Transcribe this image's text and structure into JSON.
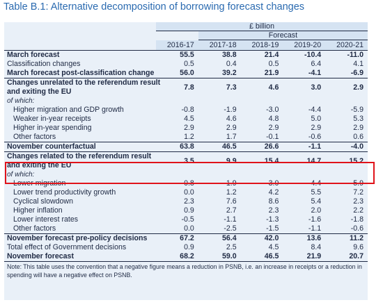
{
  "title": "Table B.1: Alternative decomposition of borrowing forecast changes",
  "header": {
    "unit": "£ billion",
    "forecast": "Forecast",
    "years": [
      "2016-17",
      "2017-18",
      "2018-19",
      "2019-20",
      "2020-21"
    ]
  },
  "rows": [
    {
      "label": "March forecast",
      "values": [
        "55.5",
        "38.8",
        "21.4",
        "-10.4",
        "-11.0"
      ]
    },
    {
      "label": "Classification changes",
      "values": [
        "0.5",
        "0.4",
        "0.5",
        "6.4",
        "4.1"
      ]
    },
    {
      "label": "March forecast post-classification change",
      "values": [
        "56.0",
        "39.2",
        "21.9",
        "-4.1",
        "-6.9"
      ]
    },
    {
      "label_line1": "Changes unrelated to the referendum result",
      "label_line2": "and exiting the EU",
      "values": [
        "7.8",
        "7.3",
        "4.6",
        "3.0",
        "2.9"
      ]
    },
    {
      "label": "of which:"
    },
    {
      "label": "Higher migration and GDP growth",
      "values": [
        "-0.8",
        "-1.9",
        "-3.0",
        "-4.4",
        "-5.9"
      ]
    },
    {
      "label": "Weaker in-year receipts",
      "values": [
        "4.5",
        "4.6",
        "4.8",
        "5.0",
        "5.3"
      ]
    },
    {
      "label": "Higher in-year spending",
      "values": [
        "2.9",
        "2.9",
        "2.9",
        "2.9",
        "2.9"
      ]
    },
    {
      "label": "Other factors",
      "values": [
        "1.2",
        "1.7",
        "-0.1",
        "-0.6",
        "0.6"
      ]
    },
    {
      "label": "November counterfactual",
      "values": [
        "63.8",
        "46.5",
        "26.6",
        "-1.1",
        "-4.0"
      ]
    },
    {
      "label_line1": "Changes related to the referendum result",
      "label_line2": "and exiting the EU",
      "values": [
        "3.5",
        "9.9",
        "15.4",
        "14.7",
        "15.2"
      ]
    },
    {
      "label": "of which:"
    },
    {
      "label": "Lower migration",
      "values": [
        "0.8",
        "1.9",
        "3.0",
        "4.4",
        "5.9"
      ]
    },
    {
      "label": "Lower trend productivity growth",
      "values": [
        "0.0",
        "1.2",
        "4.2",
        "5.5",
        "7.2"
      ]
    },
    {
      "label": "Cyclical slowdown",
      "values": [
        "2.3",
        "7.6",
        "8.6",
        "5.4",
        "2.3"
      ]
    },
    {
      "label": "Higher inflation",
      "values": [
        "0.9",
        "2.7",
        "2.3",
        "2.0",
        "2.2"
      ]
    },
    {
      "label": "Lower interest rates",
      "values": [
        "-0.5",
        "-1.1",
        "-1.3",
        "-1.6",
        "-1.8"
      ]
    },
    {
      "label": "Other factors",
      "values": [
        "0.0",
        "-2.5",
        "-1.5",
        "-1.1",
        "-0.6"
      ]
    },
    {
      "label": "November forecast pre-policy decisions",
      "values": [
        "67.2",
        "56.4",
        "42.0",
        "13.6",
        "11.2"
      ]
    },
    {
      "label": "Total effect of Government decisions",
      "values": [
        "0.9",
        "2.5",
        "4.5",
        "8.4",
        "9.6"
      ]
    },
    {
      "label": "November forecast",
      "values": [
        "68.2",
        "59.0",
        "46.5",
        "21.9",
        "20.7"
      ]
    }
  ],
  "note": "Note: This table uses the convention that a negative figure means a reduction in PSNB, i.e. an increase in receipts or a reduction in spending will have a negative effect on PSNB.",
  "highlight_color": "#e0131a"
}
